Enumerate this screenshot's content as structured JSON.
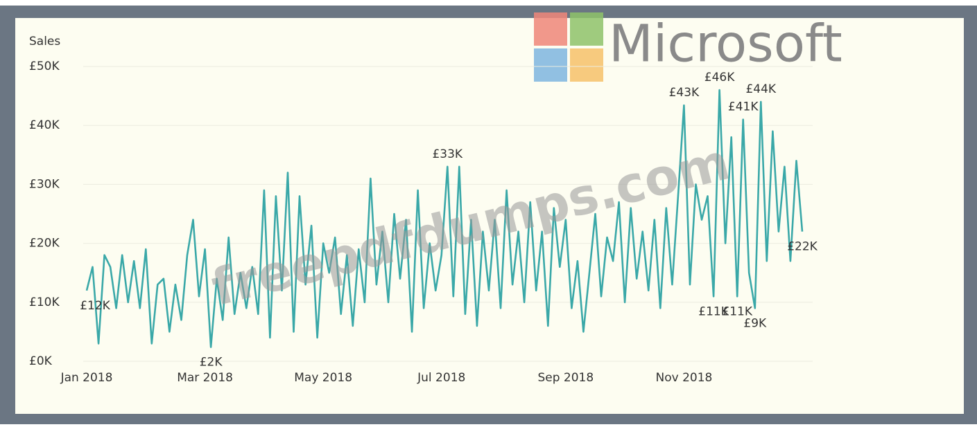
{
  "chart_data": {
    "type": "line",
    "y_label": "Sales",
    "watermarks": [
      "Microsoft",
      "freepdfdumps.com"
    ],
    "categories": [
      "Jan 2018",
      null,
      null,
      null,
      null,
      null,
      null,
      null,
      null,
      null,
      null,
      null,
      null,
      null,
      null,
      null,
      null,
      null,
      null,
      null,
      "Mar 2018",
      null,
      null,
      null,
      null,
      null,
      null,
      null,
      null,
      null,
      null,
      null,
      null,
      null,
      null,
      null,
      null,
      null,
      null,
      null,
      "May 2018",
      null,
      null,
      null,
      null,
      null,
      null,
      null,
      null,
      null,
      null,
      null,
      null,
      null,
      null,
      null,
      null,
      null,
      null,
      null,
      "Jul 2018",
      null,
      null,
      null,
      null,
      null,
      null,
      null,
      null,
      null,
      null,
      null,
      null,
      null,
      null,
      null,
      null,
      null,
      null,
      null,
      null,
      "Sep 2018",
      null,
      null,
      null,
      null,
      null,
      null,
      null,
      null,
      null,
      null,
      null,
      null,
      null,
      null,
      null,
      null,
      null,
      null,
      null,
      "Nov 2018",
      null,
      null,
      null,
      null,
      null,
      null,
      null,
      null,
      null,
      null,
      null,
      null,
      null,
      null,
      null,
      null,
      null,
      null,
      null,
      null
    ],
    "series": [
      {
        "name": "Sales",
        "color": "#3aa8a8",
        "values": [
          12,
          16,
          3,
          18,
          16,
          9,
          18,
          10,
          17,
          9,
          19,
          3,
          13,
          14,
          5,
          13,
          7,
          18,
          24,
          11,
          19,
          2.4,
          14,
          7,
          21,
          8,
          15,
          9,
          16,
          8,
          29,
          4,
          28,
          12,
          32,
          5,
          28,
          13,
          23,
          4,
          20,
          15,
          21,
          8,
          18,
          6,
          19,
          10,
          31,
          13,
          22,
          10,
          25,
          14,
          24,
          5,
          29,
          9,
          20,
          12,
          18,
          33,
          11,
          33,
          8,
          24,
          6,
          22,
          12,
          24,
          9,
          29,
          13,
          22,
          10,
          27,
          12,
          22,
          6,
          26,
          16,
          24,
          9,
          17,
          5,
          15,
          25,
          11,
          21,
          17,
          27,
          10,
          26,
          14,
          22,
          12,
          24,
          9,
          26,
          13,
          28,
          43.4,
          13,
          30,
          24,
          28,
          11,
          46,
          20,
          38,
          11,
          41,
          15,
          9,
          44,
          17,
          39,
          22,
          33,
          17,
          34,
          22
        ],
        "value_labels": [
          "£12K",
          null,
          null,
          null,
          null,
          null,
          null,
          null,
          null,
          null,
          null,
          null,
          null,
          null,
          null,
          null,
          null,
          null,
          null,
          null,
          null,
          "£2K",
          null,
          null,
          null,
          null,
          null,
          null,
          null,
          null,
          null,
          null,
          null,
          null,
          null,
          null,
          null,
          null,
          null,
          null,
          null,
          null,
          null,
          null,
          null,
          null,
          null,
          null,
          null,
          null,
          null,
          null,
          null,
          null,
          null,
          null,
          null,
          null,
          null,
          null,
          null,
          "£33K",
          null,
          null,
          null,
          null,
          null,
          null,
          null,
          null,
          null,
          null,
          null,
          null,
          null,
          null,
          null,
          null,
          null,
          null,
          null,
          null,
          null,
          null,
          null,
          null,
          null,
          null,
          null,
          null,
          null,
          null,
          null,
          null,
          null,
          null,
          null,
          null,
          null,
          null,
          null,
          "£43K",
          null,
          null,
          null,
          null,
          "£11K",
          "£46K",
          null,
          null,
          "£11K",
          "£41K",
          null,
          "£9K",
          "£44K",
          null,
          null,
          null,
          null,
          null,
          null,
          "£22K"
        ]
      }
    ],
    "ylim": [
      0,
      50
    ],
    "yticks": [
      {
        "value": 0,
        "label": "£0K"
      },
      {
        "value": 10,
        "label": "£10K"
      },
      {
        "value": 20,
        "label": "£20K"
      },
      {
        "value": 30,
        "label": "£30K"
      },
      {
        "value": 40,
        "label": "£40K"
      },
      {
        "value": 50,
        "label": "£50K"
      }
    ],
    "grid": true
  }
}
